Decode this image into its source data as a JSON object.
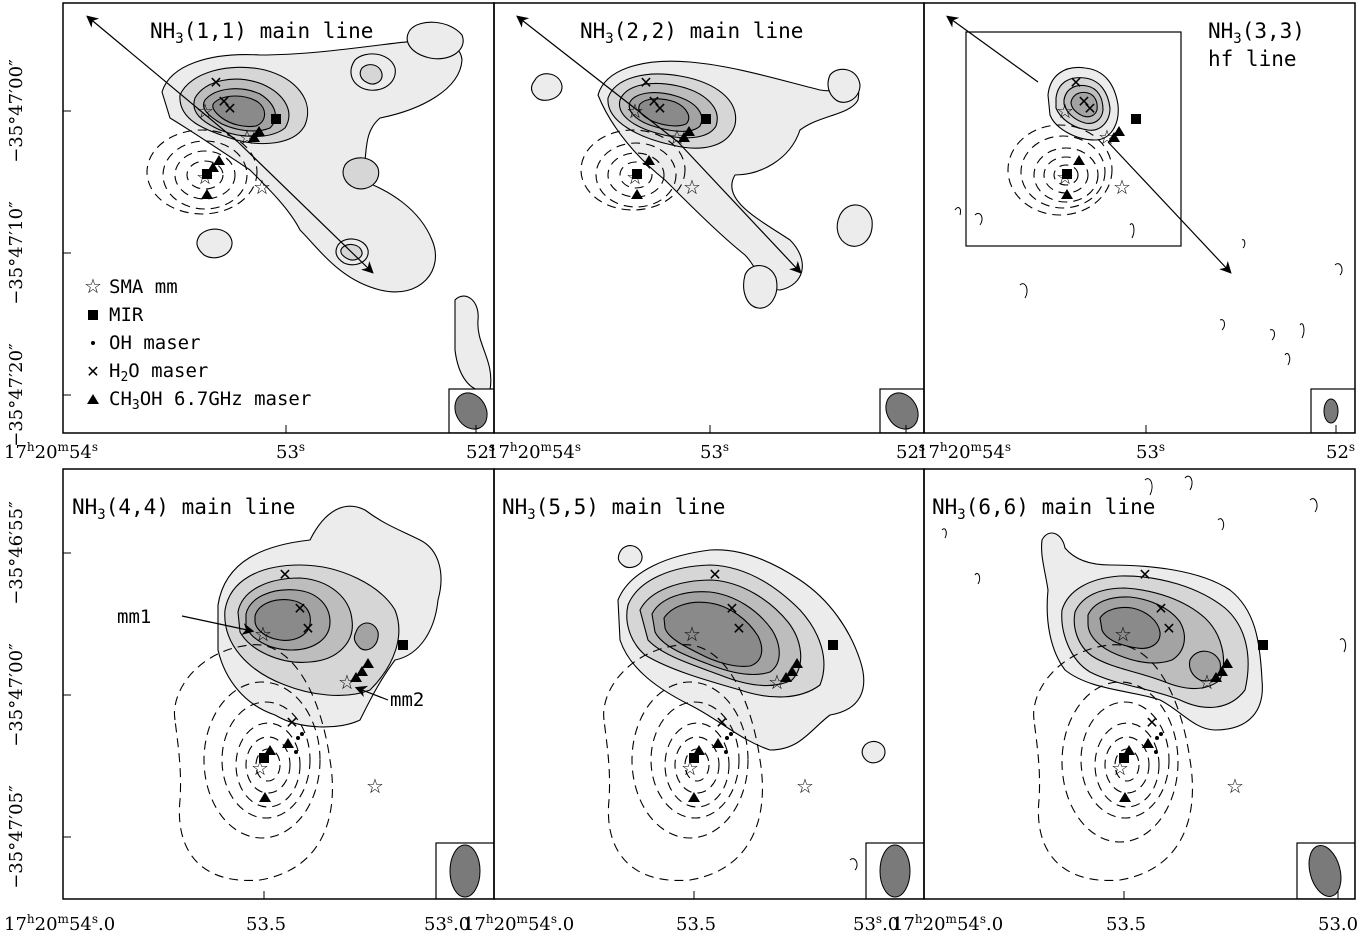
{
  "top_panels": [
    {
      "title_mol": "NH",
      "title_sub": "3",
      "title_rest": "(1,1) main line",
      "title_line2": ""
    },
    {
      "title_mol": "NH",
      "title_sub": "3",
      "title_rest": "(2,2) main line",
      "title_line2": ""
    },
    {
      "title_mol": "NH",
      "title_sub": "3",
      "title_rest": "(3,3)",
      "title_line2": "hf line"
    }
  ],
  "bottom_panels": [
    {
      "title_mol": "NH",
      "title_sub": "3",
      "title_rest": "(4,4) main line"
    },
    {
      "title_mol": "NH",
      "title_sub": "3",
      "title_rest": "(5,5) main line"
    },
    {
      "title_mol": "NH",
      "title_sub": "3",
      "title_rest": "(6,6) main line"
    }
  ],
  "legend": {
    "sma": "SMA mm",
    "mir": "MIR",
    "oh": "OH maser",
    "h2o_a": "H",
    "h2o_sub": "2",
    "h2o_b": "O maser",
    "ch3oh_a": "CH",
    "ch3oh_sub": "3",
    "ch3oh_b": "OH 6.7GHz maser"
  },
  "annotations": {
    "mm1": "mm1",
    "mm2": "mm2"
  },
  "top_dec_ticks": [
    "−35°47′00″",
    "−35°47′10″",
    "−35°47′20″"
  ],
  "top_ra_ticks": {
    "first": {
      "h": "17",
      "hs": "h",
      "m": "20",
      "ms": "m",
      "s": "54",
      "ss": "s"
    },
    "mid": {
      "s": "53",
      "ss": "s"
    },
    "last": {
      "s": "52",
      "ss": "s"
    }
  },
  "bottom_dec_ticks": [
    "−35°46′55″",
    "−35°47′00″",
    "−35°47′05″"
  ],
  "bottom_ra_ticks": {
    "first": {
      "h": "17",
      "hs": "h",
      "m": "20",
      "ms": "m",
      "s": "54",
      "ss": "s",
      "dec": ".0"
    },
    "mid": "53.5",
    "mid2": {
      "s": "53",
      "ss": "s",
      "dec": ".0"
    },
    "last": "53.0"
  },
  "colors": {
    "fill_light": "#ececec",
    "fill_2": "#d6d6d6",
    "fill_3": "#bdbdbd",
    "fill_4": "#a3a3a3",
    "fill_5": "#8a8a8a",
    "beam": "#7a7a7a"
  }
}
